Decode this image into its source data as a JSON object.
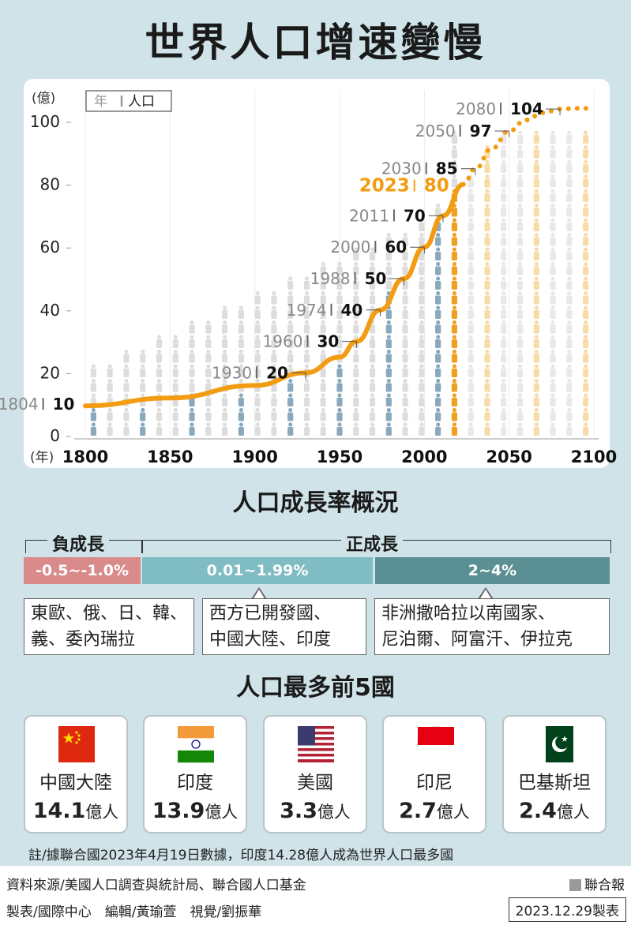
{
  "title": "世界人口增速變慢",
  "chart_data": {
    "type": "line",
    "yunit": "(億)",
    "xunit": "(年)",
    "legend": {
      "year": "年",
      "pop": "人口"
    },
    "xlim": [
      1800,
      2100
    ],
    "ylim": [
      0,
      104
    ],
    "xticks": [
      1800,
      1850,
      1900,
      1950,
      2000,
      2050,
      2100
    ],
    "yticks": [
      0,
      20,
      40,
      60,
      80,
      100
    ],
    "milestones": [
      {
        "year": "1804",
        "value": "10",
        "x": 1804,
        "y": 10
      },
      {
        "year": "1930",
        "value": "20",
        "x": 1930,
        "y": 20
      },
      {
        "year": "1960",
        "value": "30",
        "x": 1960,
        "y": 30
      },
      {
        "year": "1974",
        "value": "40",
        "x": 1974,
        "y": 40
      },
      {
        "year": "1988",
        "value": "50",
        "x": 1988,
        "y": 50
      },
      {
        "year": "2000",
        "value": "60",
        "x": 2000,
        "y": 60
      },
      {
        "year": "2011",
        "value": "70",
        "x": 2011,
        "y": 70
      },
      {
        "year": "2023",
        "value": "80",
        "x": 2023,
        "y": 80,
        "highlight": true
      },
      {
        "year": "2030",
        "value": "85",
        "x": 2030,
        "y": 85
      },
      {
        "year": "2050",
        "value": "97",
        "x": 2050,
        "y": 97
      },
      {
        "year": "2080",
        "value": "104",
        "x": 2080,
        "y": 104
      }
    ],
    "historical": [
      [
        1800,
        9.5
      ],
      [
        1850,
        12
      ],
      [
        1900,
        16
      ],
      [
        1930,
        20
      ],
      [
        1950,
        25
      ],
      [
        1960,
        30
      ],
      [
        1974,
        40
      ],
      [
        1988,
        50
      ],
      [
        2000,
        60
      ],
      [
        2011,
        70
      ],
      [
        2023,
        80
      ]
    ],
    "projection": [
      [
        2023,
        80
      ],
      [
        2030,
        85
      ],
      [
        2040,
        91.5
      ],
      [
        2050,
        97
      ],
      [
        2060,
        100.5
      ],
      [
        2070,
        102.8
      ],
      [
        2080,
        104
      ],
      [
        2090,
        104.2
      ],
      [
        2100,
        104.2
      ]
    ],
    "colors": {
      "line": "#f39c12",
      "past_icon": "#8aa9bd",
      "current_icon": "#f0a020",
      "future_icon": "#f8dca8",
      "bg_icon": "#dddddd",
      "highlight_text": "#f39c12"
    }
  },
  "growth": {
    "title": "人口成長率概況",
    "negative_label": "負成長",
    "positive_label": "正成長",
    "bars": [
      {
        "label": "-0.5~-1.0%",
        "color": "#d98a8a"
      },
      {
        "label": "0.01~1.99%",
        "color": "#7fbcc3"
      },
      {
        "label": "2~4%",
        "color": "#5a8f93"
      }
    ],
    "boxes": [
      {
        "line1": "東歐、俄、日、韓、",
        "line2": "義、委內瑞拉"
      },
      {
        "line1": "西方已開發國、",
        "line2": "中國大陸、印度"
      },
      {
        "line1": "非洲撒哈拉以南國家、",
        "line2": "尼泊爾、阿富汗、伊拉克"
      }
    ]
  },
  "top5": {
    "title": "人口最多前5國",
    "unit": "億人",
    "countries": [
      {
        "name": "中國大陸",
        "value": "14.1",
        "flag": "china-flag-icon"
      },
      {
        "name": "印度",
        "value": "13.9",
        "flag": "india-flag-icon"
      },
      {
        "name": "美國",
        "value": "3.3",
        "flag": "usa-flag-icon"
      },
      {
        "name": "印尼",
        "value": "2.7",
        "flag": "indonesia-flag-icon"
      },
      {
        "name": "巴基斯坦",
        "value": "2.4",
        "flag": "pakistan-flag-icon"
      }
    ]
  },
  "note": "註/據聯合國2023年4月19日數據，印度14.28億人成為世界人口最多國",
  "footer": {
    "source": "資料來源/美國人口調查與統計局、聯合國人口基金",
    "credits": "製表/國際中心　編輯/黃瑜萱　視覺/劉振華",
    "brand": "聯合報",
    "date": "2023.12.29製表"
  }
}
